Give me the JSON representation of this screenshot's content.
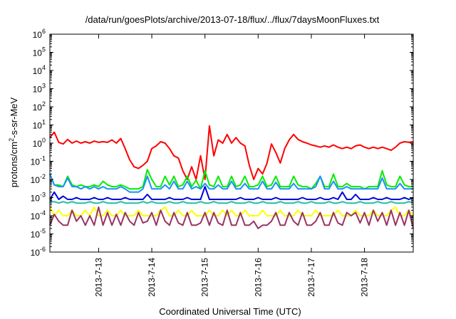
{
  "chart_data": {
    "type": "line",
    "title": "/data/run/goesPlots/archive/2013-07-18/flux/../flux/7daysMoonFluxes.txt",
    "xlabel": "Coordinated Universal Time (UTC)",
    "ylabel_parts": [
      "protons/cm",
      "2",
      "-s-sr-MeV"
    ],
    "y_scale": "log",
    "ylim": [
      1e-06,
      1000000.0
    ],
    "y_ticks": [
      {
        "base": "10",
        "exp": "-6",
        "value": 1e-06
      },
      {
        "base": "10",
        "exp": "-5",
        "value": 1e-05
      },
      {
        "base": "10",
        "exp": "-4",
        "value": 0.0001
      },
      {
        "base": "10",
        "exp": "-3",
        "value": 0.001
      },
      {
        "base": "10",
        "exp": "-2",
        "value": 0.01
      },
      {
        "base": "10",
        "exp": "-1",
        "value": 0.1
      },
      {
        "base": "10",
        "exp": "0",
        "value": 1
      },
      {
        "base": "10",
        "exp": "1",
        "value": 10
      },
      {
        "base": "10",
        "exp": "2",
        "value": 100
      },
      {
        "base": "10",
        "exp": "3",
        "value": 1000
      },
      {
        "base": "10",
        "exp": "4",
        "value": 10000
      },
      {
        "base": "10",
        "exp": "5",
        "value": 100000
      },
      {
        "base": "10",
        "exp": "6",
        "value": 1000000
      }
    ],
    "xlim": [
      "2013-07-12T02:00",
      "2013-07-18T22:00"
    ],
    "x_ticks": [
      {
        "label": "2013-7-13",
        "value": "2013-07-13"
      },
      {
        "label": "2013-7-14",
        "value": "2013-07-14"
      },
      {
        "label": "2013-7-15",
        "value": "2013-07-15"
      },
      {
        "label": "2013-7-16",
        "value": "2013-07-16"
      },
      {
        "label": "2013-7-17",
        "value": "2013-07-17"
      },
      {
        "label": "2013-7-18",
        "value": "2013-07-18"
      }
    ],
    "grid": false,
    "legend": "none",
    "x": [
      "2013-07-12T02:00",
      "2013-07-12T04:00",
      "2013-07-12T06:00",
      "2013-07-12T08:00",
      "2013-07-12T10:00",
      "2013-07-12T12:00",
      "2013-07-12T14:00",
      "2013-07-12T16:00",
      "2013-07-12T18:00",
      "2013-07-12T20:00",
      "2013-07-12T22:00",
      "2013-07-13T00:00",
      "2013-07-13T02:00",
      "2013-07-13T04:00",
      "2013-07-13T06:00",
      "2013-07-13T08:00",
      "2013-07-13T10:00",
      "2013-07-13T12:00",
      "2013-07-13T14:00",
      "2013-07-13T16:00",
      "2013-07-13T18:00",
      "2013-07-13T20:00",
      "2013-07-13T22:00",
      "2013-07-14T00:00",
      "2013-07-14T02:00",
      "2013-07-14T04:00",
      "2013-07-14T06:00",
      "2013-07-14T08:00",
      "2013-07-14T10:00",
      "2013-07-14T12:00",
      "2013-07-14T14:00",
      "2013-07-14T16:00",
      "2013-07-14T18:00",
      "2013-07-14T20:00",
      "2013-07-14T22:00",
      "2013-07-15T00:00",
      "2013-07-15T02:00",
      "2013-07-15T04:00",
      "2013-07-15T06:00",
      "2013-07-15T08:00",
      "2013-07-15T10:00",
      "2013-07-15T12:00",
      "2013-07-15T14:00",
      "2013-07-15T16:00",
      "2013-07-15T18:00",
      "2013-07-15T20:00",
      "2013-07-15T22:00",
      "2013-07-16T00:00",
      "2013-07-16T02:00",
      "2013-07-16T04:00",
      "2013-07-16T06:00",
      "2013-07-16T08:00",
      "2013-07-16T10:00",
      "2013-07-16T12:00",
      "2013-07-16T14:00",
      "2013-07-16T16:00",
      "2013-07-16T18:00",
      "2013-07-16T20:00",
      "2013-07-16T22:00",
      "2013-07-17T00:00",
      "2013-07-17T02:00",
      "2013-07-17T04:00",
      "2013-07-17T06:00",
      "2013-07-17T08:00",
      "2013-07-17T10:00",
      "2013-07-17T12:00",
      "2013-07-17T14:00",
      "2013-07-17T16:00",
      "2013-07-17T18:00",
      "2013-07-17T20:00",
      "2013-07-17T22:00",
      "2013-07-18T00:00",
      "2013-07-18T02:00",
      "2013-07-18T04:00",
      "2013-07-18T06:00",
      "2013-07-18T08:00",
      "2013-07-18T10:00",
      "2013-07-18T12:00",
      "2013-07-18T14:00",
      "2013-07-18T16:00",
      "2013-07-18T18:00",
      "2013-07-18T20:00",
      "2013-07-18T22:00"
    ],
    "series": [
      {
        "color": "#ff0000",
        "values": [
          2,
          4,
          1.1,
          0.9,
          1.6,
          1,
          1.3,
          1,
          1.2,
          1,
          1.3,
          1.1,
          1.2,
          1.1,
          1.5,
          1,
          1.8,
          0.5,
          0.12,
          0.05,
          0.04,
          0.06,
          0.1,
          0.5,
          0.7,
          1.2,
          1,
          0.5,
          0.2,
          0.15,
          0.03,
          0.01,
          0.05,
          0.01,
          0.2,
          0.01,
          9,
          0.2,
          1.5,
          1,
          3,
          1,
          2,
          1,
          0.7,
          0.06,
          0.01,
          0.04,
          0.02,
          0.08,
          0.9,
          0.3,
          0.08,
          0.5,
          1.5,
          3,
          1.6,
          1.2,
          1,
          0.8,
          0.7,
          0.6,
          0.7,
          0.6,
          0.8,
          0.6,
          0.5,
          0.6,
          0.5,
          0.7,
          0.8,
          0.6,
          0.5,
          0.6,
          0.5,
          0.6,
          0.5,
          0.4,
          0.6,
          1,
          1.2,
          1.1,
          1.2
        ]
      },
      {
        "color": "#00ee00",
        "values": [
          0.02,
          0.005,
          0.005,
          0.004,
          0.015,
          0.005,
          0.004,
          0.005,
          0.004,
          0.004,
          0.005,
          0.004,
          0.008,
          0.005,
          0.004,
          0.004,
          0.005,
          0.004,
          0.003,
          0.003,
          0.003,
          0.004,
          0.035,
          0.01,
          0.004,
          0.004,
          0.015,
          0.005,
          0.015,
          0.004,
          0.005,
          0.015,
          0.004,
          0.009,
          0.003,
          0.03,
          0.005,
          0.004,
          0.015,
          0.004,
          0.004,
          0.015,
          0.004,
          0.005,
          0.015,
          0.004,
          0.004,
          0.005,
          0.015,
          0.004,
          0.005,
          0.015,
          0.004,
          0.004,
          0.004,
          0.015,
          0.005,
          0.004,
          0.004,
          0.003,
          0.006,
          0.015,
          0.004,
          0.004,
          0.02,
          0.004,
          0.004,
          0.006,
          0.004,
          0.004,
          0.004,
          0.003,
          0.004,
          0.004,
          0.004,
          0.03,
          0.005,
          0.004,
          0.004,
          0.015,
          0.005,
          0.004,
          0.004
        ]
      },
      {
        "color": "#1e90ff",
        "values": [
          0.02,
          0.005,
          0.004,
          0.004,
          0.012,
          0.004,
          0.004,
          0.003,
          0.004,
          0.003,
          0.004,
          0.003,
          0.004,
          0.003,
          0.003,
          0.003,
          0.004,
          0.003,
          0.002,
          0.002,
          0.002,
          0.003,
          0.015,
          0.003,
          0.003,
          0.003,
          0.005,
          0.003,
          0.008,
          0.003,
          0.003,
          0.008,
          0.003,
          0.004,
          0.003,
          0.006,
          0.003,
          0.003,
          0.005,
          0.003,
          0.003,
          0.008,
          0.003,
          0.003,
          0.006,
          0.003,
          0.003,
          0.003,
          0.008,
          0.003,
          0.003,
          0.007,
          0.003,
          0.003,
          0.003,
          0.006,
          0.003,
          0.003,
          0.003,
          0.003,
          0.004,
          0.015,
          0.003,
          0.003,
          0.008,
          0.003,
          0.003,
          0.004,
          0.003,
          0.003,
          0.003,
          0.003,
          0.003,
          0.003,
          0.003,
          0.012,
          0.003,
          0.003,
          0.003,
          0.006,
          0.003,
          0.003,
          0.003
        ]
      },
      {
        "color": "#0000dd",
        "values": [
          0.0008,
          0.002,
          0.0008,
          0.0012,
          0.0008,
          0.0008,
          0.001,
          0.0008,
          0.0008,
          0.0008,
          0.001,
          0.0008,
          0.0008,
          0.001,
          0.0008,
          0.0008,
          0.0008,
          0.001,
          0.0008,
          0.0008,
          0.0008,
          0.0008,
          0.0015,
          0.0008,
          0.0008,
          0.0008,
          0.0008,
          0.001,
          0.0008,
          0.0008,
          0.0008,
          0.001,
          0.0008,
          0.0008,
          0.0008,
          0.004,
          0.0008,
          0.0008,
          0.0008,
          0.0008,
          0.0008,
          0.0008,
          0.0008,
          0.001,
          0.0008,
          0.0008,
          0.0008,
          0.001,
          0.0008,
          0.0008,
          0.0008,
          0.001,
          0.0008,
          0.0008,
          0.0008,
          0.0008,
          0.0008,
          0.001,
          0.0008,
          0.0008,
          0.0008,
          0.001,
          0.0008,
          0.0008,
          0.001,
          0.0008,
          0.002,
          0.0008,
          0.0008,
          0.0015,
          0.0008,
          0.0008,
          0.0008,
          0.001,
          0.0008,
          0.0008,
          0.001,
          0.0008,
          0.0008,
          0.0008,
          0.001,
          0.0008,
          0.001
        ]
      },
      {
        "color": "#20c0a0",
        "values": [
          0.0006,
          0.0006,
          0.0005,
          0.0006,
          0.0005,
          0.0006,
          0.0005,
          0.0005,
          0.0005,
          0.0006,
          0.0005,
          0.0005,
          0.0006,
          0.0005,
          0.0005,
          0.0005,
          0.0006,
          0.0005,
          0.0005,
          0.0005,
          0.0005,
          0.0006,
          0.0005,
          0.0006,
          0.0005,
          0.0005,
          0.0005,
          0.0006,
          0.0005,
          0.0005,
          0.0006,
          0.0005,
          0.0005,
          0.0005,
          0.0006,
          0.0005,
          0.0005,
          0.0006,
          0.0005,
          0.0005,
          0.0005,
          0.0006,
          0.0005,
          0.0005,
          0.0005,
          0.0006,
          0.0005,
          0.0005,
          0.0006,
          0.0005,
          0.0005,
          0.0005,
          0.0006,
          0.0005,
          0.0005,
          0.0005,
          0.0006,
          0.0005,
          0.0005,
          0.0006,
          0.0005,
          0.0005,
          0.0005,
          0.0006,
          0.0005,
          0.0005,
          0.0006,
          0.0005,
          0.0005,
          0.0005,
          0.0006,
          0.0005,
          0.0005,
          0.0005,
          0.0006,
          0.0005,
          0.0005,
          0.0006,
          0.0005,
          0.0005,
          0.0005,
          0.0006,
          0.0005
        ]
      },
      {
        "color": "#ffff00",
        "values": [
          0.0003,
          0.0001,
          0.0002,
          0.0001,
          0.0001,
          0.0002,
          0.0001,
          0.0001,
          0.0002,
          0.0001,
          0.0003,
          0.0001,
          0.0001,
          0.0002,
          0.0001,
          0.0001,
          0.0002,
          0.0001,
          0.0001,
          0.0001,
          0.0002,
          0.0001,
          0.0001,
          0.0001,
          0.0001,
          0.0002,
          0.0003,
          0.0001,
          0.0001,
          0.0002,
          0.0001,
          0.0001,
          0.0002,
          0.0001,
          0.0001,
          0.0001,
          0.0002,
          0.0001,
          0.0001,
          0.0002,
          0.0001,
          0.0002,
          0.0001,
          0.0001,
          0.0002,
          0.0001,
          0.0001,
          0.0001,
          0.0002,
          0.0001,
          0.0001,
          0.0001,
          0.0002,
          0.0001,
          0.0001,
          0.0001,
          0.0002,
          0.0001,
          0.0001,
          0.0001,
          0.0002,
          0.0001,
          0.0001,
          0.0001,
          0.0001,
          0.0002,
          0.0001,
          0.0001,
          0.0001,
          0.0002,
          0.0001,
          0.0001,
          0.0001,
          0.0002,
          0.0001,
          0.0001,
          0.0001,
          0.0002,
          0.0003,
          0.0001,
          0.0001,
          0.0002,
          0.0001
        ]
      },
      {
        "color": "#993366",
        "values": [
          3e-05,
          0.00012,
          5e-05,
          3e-05,
          3e-05,
          0.0002,
          5e-05,
          0.0001,
          3e-05,
          0.0001,
          3e-05,
          0.0003,
          3e-05,
          0.00015,
          3e-05,
          0.00012,
          3e-05,
          0.00015,
          5e-05,
          3e-05,
          0.00015,
          4e-05,
          5e-05,
          0.00015,
          3e-05,
          0.0002,
          5e-05,
          3e-05,
          0.00015,
          4e-05,
          3e-05,
          0.00015,
          3e-05,
          3e-05,
          4e-05,
          0.00015,
          3e-05,
          0.00015,
          4e-05,
          3e-05,
          0.0002,
          3e-05,
          3e-05,
          0.00015,
          3e-05,
          3e-05,
          5e-05,
          2e-05,
          3e-05,
          3e-05,
          5e-05,
          0.00015,
          3e-05,
          3e-05,
          0.00015,
          5e-05,
          3e-05,
          0.00015,
          3e-05,
          3e-05,
          5e-05,
          0.00015,
          3e-05,
          3e-05,
          0.00015,
          4e-05,
          3e-05,
          0.00015,
          0.0001,
          0.00015,
          4e-05,
          0.00015,
          3e-05,
          0.0002,
          5e-05,
          0.00015,
          3e-05,
          0.0002,
          3e-05,
          0.00015,
          3e-05,
          0.0002,
          2e-05
        ]
      }
    ]
  }
}
